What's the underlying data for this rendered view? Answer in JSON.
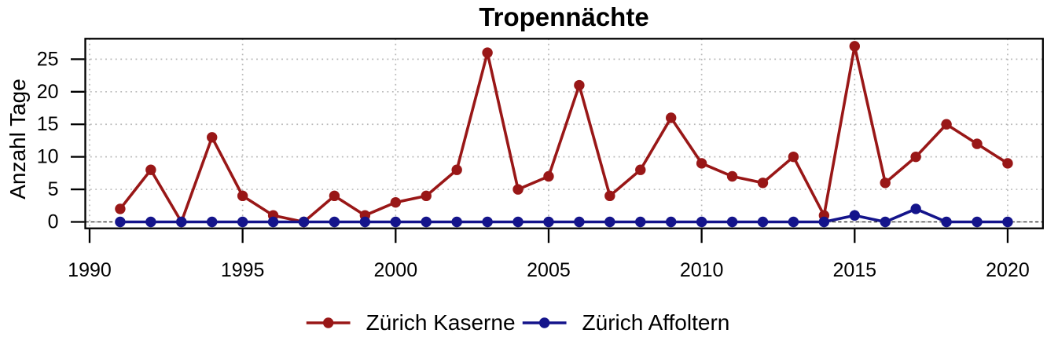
{
  "chart_data": {
    "type": "line",
    "title": "Tropennächte",
    "xlabel": "",
    "ylabel": "Anzahl Tage",
    "x": [
      1991,
      1992,
      1993,
      1994,
      1995,
      1996,
      1997,
      1998,
      1999,
      2000,
      2001,
      2002,
      2003,
      2004,
      2005,
      2006,
      2007,
      2008,
      2009,
      2010,
      2011,
      2012,
      2013,
      2014,
      2015,
      2016,
      2017,
      2018,
      2019,
      2020
    ],
    "series": [
      {
        "name": "Zürich Kaserne",
        "color": "#991717",
        "values": [
          2,
          8,
          0,
          13,
          4,
          1,
          0,
          4,
          1,
          3,
          4,
          8,
          26,
          5,
          7,
          21,
          4,
          8,
          16,
          9,
          7,
          6,
          10,
          1,
          27,
          6,
          10,
          15,
          12,
          9
        ]
      },
      {
        "name": "Zürich Affoltern",
        "color": "#14148B",
        "values": [
          0,
          0,
          0,
          0,
          0,
          0,
          0,
          0,
          0,
          0,
          0,
          0,
          0,
          0,
          0,
          0,
          0,
          0,
          0,
          0,
          0,
          0,
          0,
          0,
          1,
          0,
          2,
          0,
          0,
          0
        ]
      }
    ],
    "xticks": [
      1990,
      1995,
      2000,
      2005,
      2010,
      2015,
      2020
    ],
    "yticks": [
      0,
      5,
      10,
      15,
      20,
      25
    ],
    "xlim": [
      1989.859,
      2021.152
    ],
    "ylim": [
      -0.99,
      28.15
    ],
    "grid": true,
    "grid_color": "#b8b8b8",
    "zero_line": true,
    "zero_line_color": "#2b2b2b",
    "axis_color": "#000000",
    "legend_position": "bottom"
  }
}
